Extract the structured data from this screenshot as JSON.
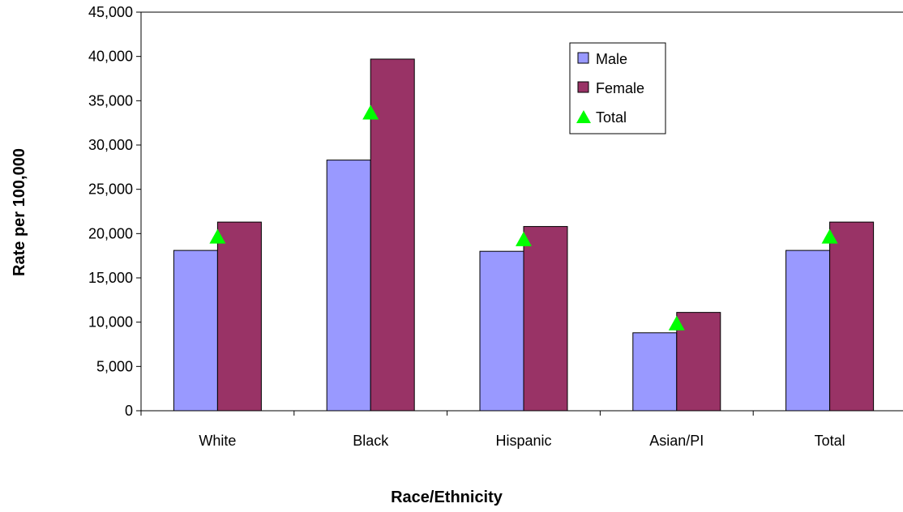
{
  "chart_data": {
    "type": "bar",
    "title": "",
    "xlabel": "Race/Ethnicity",
    "ylabel": "Rate per 100,000",
    "categories": [
      "White",
      "Black",
      "Hispanic",
      "Asian/PI",
      "Total"
    ],
    "series": [
      {
        "name": "Male",
        "kind": "bar",
        "color": "#9999FF",
        "values": [
          18100,
          28300,
          18000,
          8800,
          18100
        ]
      },
      {
        "name": "Female",
        "kind": "bar",
        "color": "#993366",
        "values": [
          21300,
          39700,
          20800,
          11100,
          21300
        ]
      },
      {
        "name": "Total",
        "kind": "marker-triangle",
        "color": "#00FF00",
        "values": [
          19700,
          33700,
          19400,
          9900,
          19700
        ]
      }
    ],
    "ylim": [
      0,
      45000
    ],
    "yticks": [
      0,
      5000,
      10000,
      15000,
      20000,
      25000,
      30000,
      35000,
      40000,
      45000
    ],
    "ytick_labels": [
      "0",
      "5,000",
      "10,000",
      "15,000",
      "20,000",
      "25,000",
      "30,000",
      "35,000",
      "40,000",
      "45,000"
    ],
    "grid": false,
    "legend_position": "top-right"
  }
}
